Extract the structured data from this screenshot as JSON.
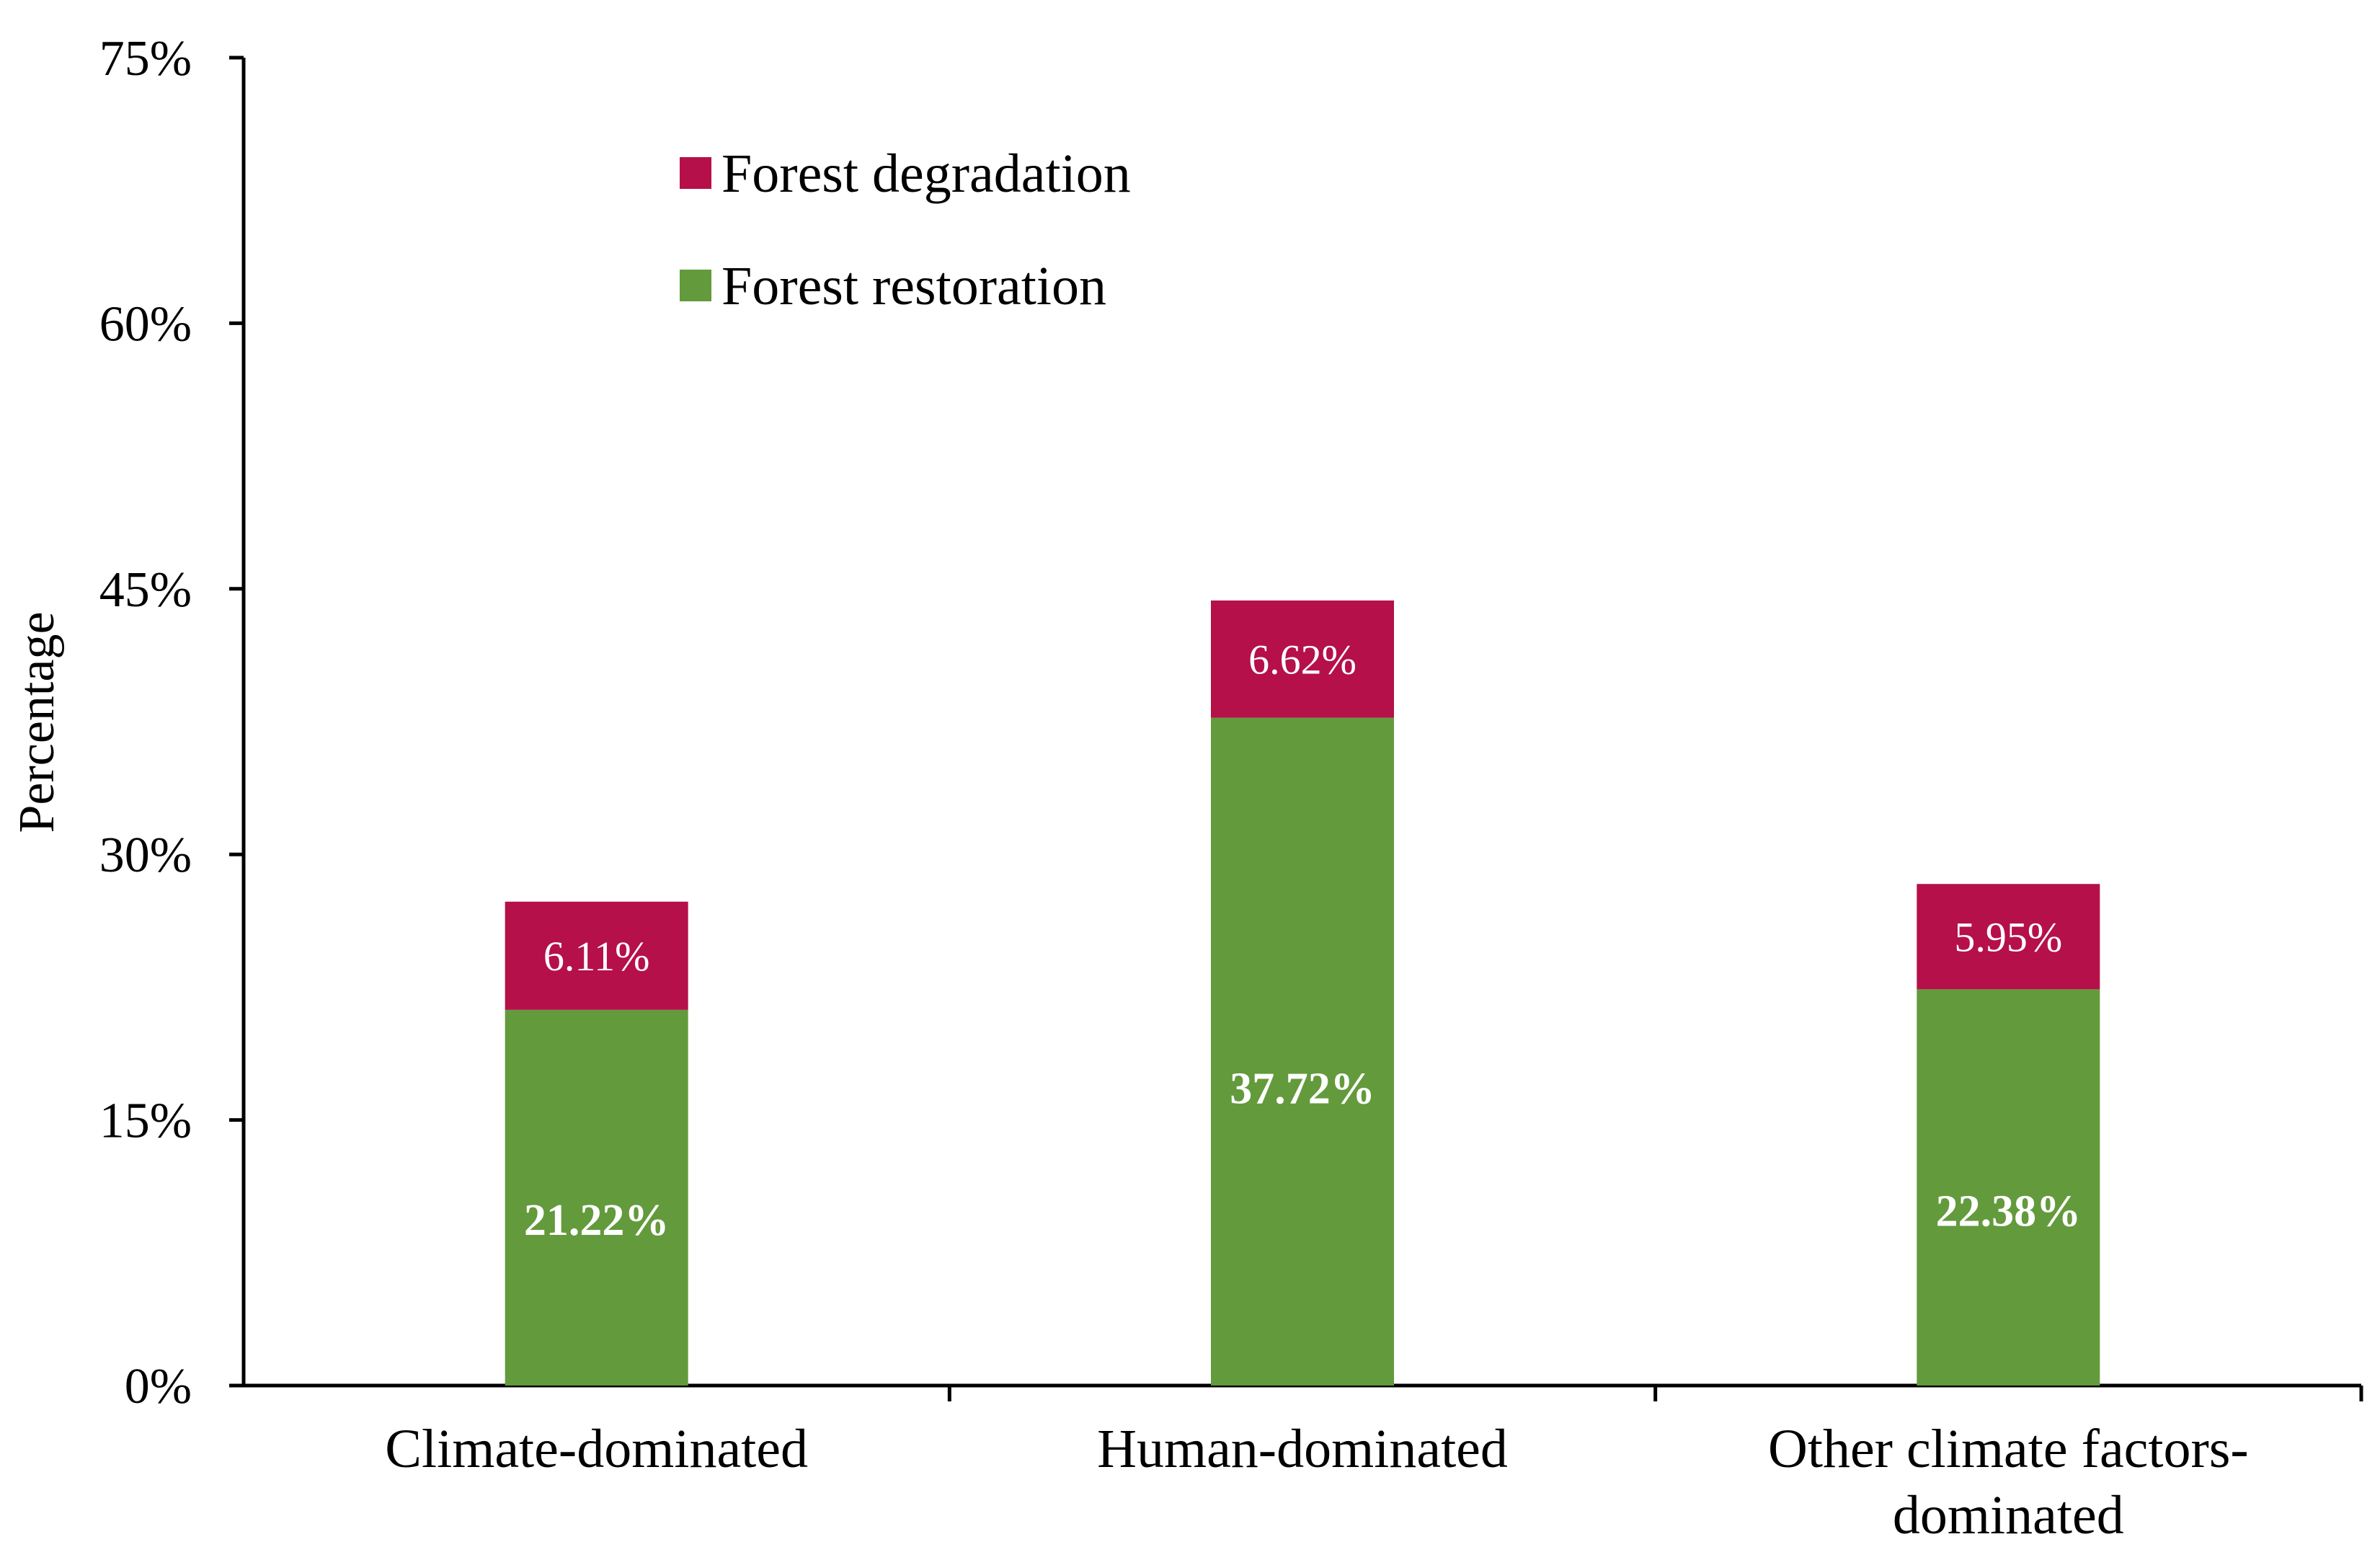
{
  "chart_data": {
    "type": "bar",
    "stacked": true,
    "title": "",
    "xlabel": "",
    "ylabel": "Percentage",
    "ylim": [
      0,
      75
    ],
    "yticks": [
      0,
      15,
      30,
      45,
      60,
      75
    ],
    "ytick_labels": [
      "0%",
      "15%",
      "30%",
      "45%",
      "60%",
      "75%"
    ],
    "categories": [
      [
        "Climate-dominated"
      ],
      [
        "Human-dominated"
      ],
      [
        "Other climate factors-",
        "dominated"
      ]
    ],
    "series": [
      {
        "name": "Forest restoration",
        "color": "#639A3C",
        "values": [
          21.22,
          37.72,
          22.38
        ],
        "labels": [
          "21.22%",
          "37.72%",
          "22.38%"
        ]
      },
      {
        "name": "Forest degradation",
        "color": "#B5104A",
        "values": [
          6.11,
          6.62,
          5.95
        ],
        "labels": [
          "6.11%",
          "6.62%",
          "5.95%"
        ]
      }
    ],
    "legend": {
      "position": "top-left inside",
      "entries": [
        "Forest degradation",
        "Forest restoration"
      ]
    },
    "grid": false
  }
}
